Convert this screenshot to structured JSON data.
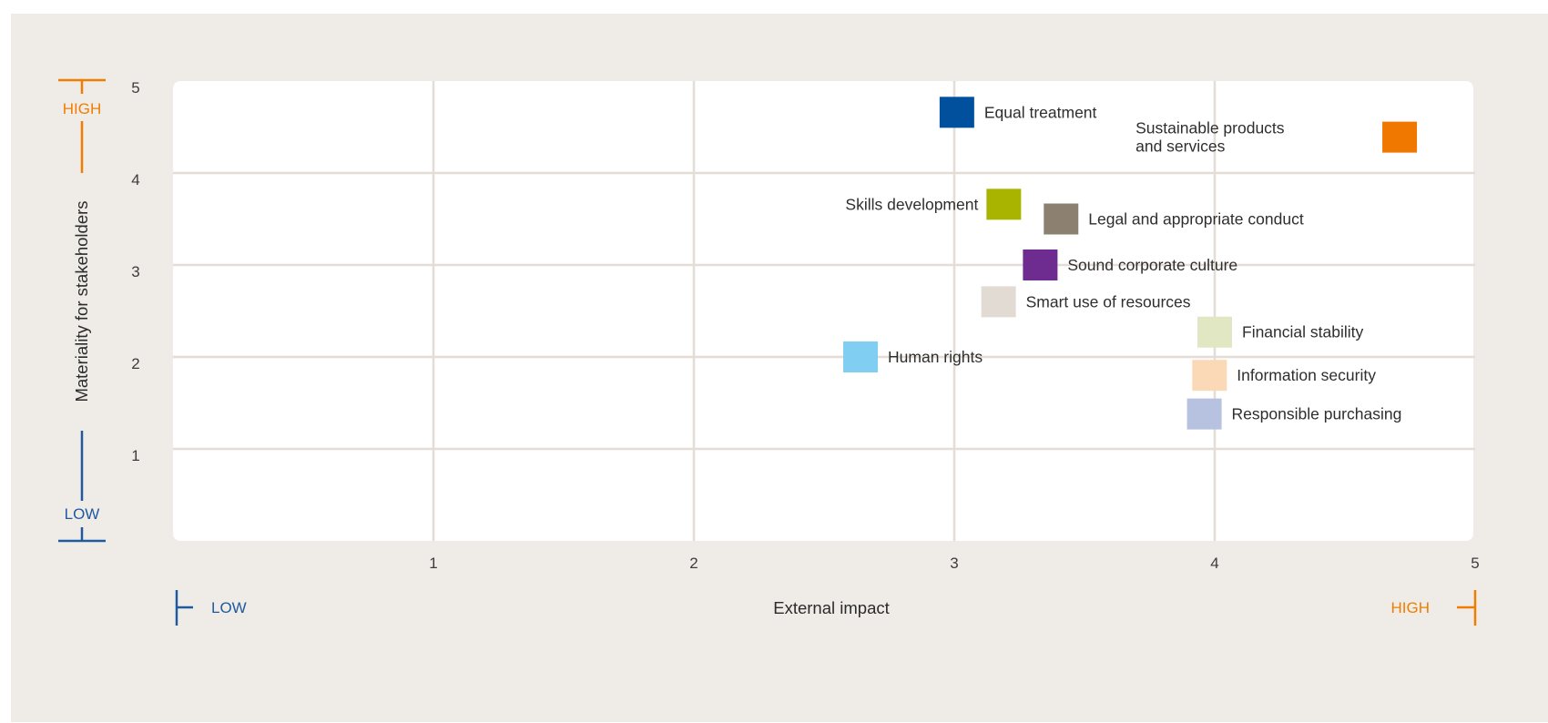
{
  "chart_data": {
    "type": "scatter",
    "xlabel": "External impact",
    "ylabel": "Materiality for stakeholders",
    "xlim": [
      0,
      5
    ],
    "ylim": [
      0,
      5
    ],
    "x_ticks": [
      "1",
      "2",
      "3",
      "4",
      "5"
    ],
    "y_ticks": [
      "1",
      "2",
      "3",
      "4",
      "5"
    ],
    "grid": true,
    "x_axis_scale": {
      "low": "LOW",
      "high": "HIGH"
    },
    "y_axis_scale": {
      "low": "LOW",
      "high": "HIGH"
    },
    "colors": {
      "low": "#1f5aa0",
      "high": "#f07d00"
    },
    "points": [
      {
        "label": "Equal treatment",
        "x": 3.01,
        "y": 4.66,
        "color": "#00509e",
        "label_side": "right"
      },
      {
        "label": "Sustainable products\nand services",
        "x": 4.71,
        "y": 4.39,
        "color": "#f07800",
        "label_side": "left"
      },
      {
        "label": "Skills development",
        "x": 3.19,
        "y": 3.66,
        "color": "#a8b400",
        "label_side": "left"
      },
      {
        "label": "Legal and appropriate conduct",
        "x": 3.41,
        "y": 3.5,
        "color": "#8c8170",
        "label_side": "right"
      },
      {
        "label": "Sound corporate culture",
        "x": 3.33,
        "y": 3.0,
        "color": "#6e2c91",
        "label_side": "right"
      },
      {
        "label": "Smart use of resources",
        "x": 3.17,
        "y": 2.6,
        "color": "#e1dbd4",
        "label_side": "right"
      },
      {
        "label": "Human rights",
        "x": 2.64,
        "y": 2.0,
        "color": "#80cff3",
        "label_side": "right"
      },
      {
        "label": "Financial stability",
        "x": 4.0,
        "y": 2.27,
        "color": "#e1e7c2",
        "label_side": "right"
      },
      {
        "label": "Information security",
        "x": 3.98,
        "y": 1.8,
        "color": "#fcd9b6",
        "label_side": "right"
      },
      {
        "label": "Responsible purchasing",
        "x": 3.96,
        "y": 1.38,
        "color": "#b6c2e0",
        "label_side": "right"
      }
    ]
  }
}
